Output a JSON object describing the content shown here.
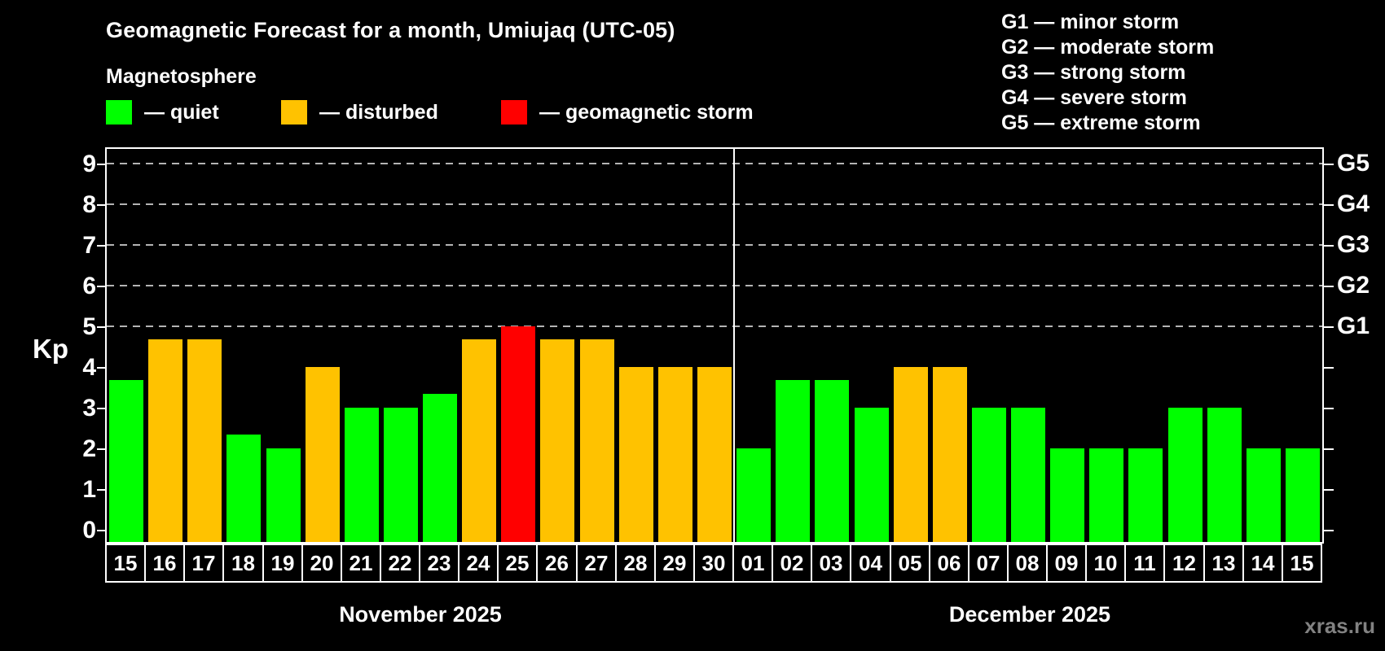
{
  "title": "Geomagnetic Forecast for a month, Umiujaq (UTC-05)",
  "subtitle": "Magnetosphere",
  "watermark": "xras.ru",
  "colors": {
    "background": "#000000",
    "quiet": "#00ff00",
    "disturbed": "#ffc200",
    "storm": "#ff0000",
    "frame": "#ffffff",
    "grid": "#b4b4b4",
    "watermark_text": "#828282"
  },
  "legend": [
    {
      "state": "quiet",
      "label": "— quiet"
    },
    {
      "state": "disturbed",
      "label": "— disturbed"
    },
    {
      "state": "storm",
      "label": "— geomagnetic storm"
    }
  ],
  "storm_scale_legend": [
    "G1 — minor storm",
    "G2 — moderate storm",
    "G3 — strong storm",
    "G4 — severe storm",
    "G5 — extreme storm"
  ],
  "chart_data": {
    "type": "bar",
    "ylabel": "Kp",
    "ylim": [
      0,
      9
    ],
    "yticks": [
      0,
      1,
      2,
      3,
      4,
      5,
      6,
      7,
      8,
      9
    ],
    "grid": {
      "horizontal_dashed_at_kp": [
        5,
        6,
        7,
        8,
        9
      ],
      "legend_position": "top"
    },
    "right_axis": [
      {
        "kp": 5,
        "label": "G1"
      },
      {
        "kp": 6,
        "label": "G2"
      },
      {
        "kp": 7,
        "label": "G3"
      },
      {
        "kp": 8,
        "label": "G4"
      },
      {
        "kp": 9,
        "label": "G5"
      }
    ],
    "groups": [
      {
        "label": "November 2025",
        "days": [
          "15",
          "16",
          "17",
          "18",
          "19",
          "20",
          "21",
          "22",
          "23",
          "24",
          "25",
          "26",
          "27",
          "28",
          "29",
          "30"
        ],
        "values": [
          3.67,
          4.67,
          4.67,
          2.33,
          2,
          4,
          3,
          3,
          3.33,
          4.67,
          5,
          4.67,
          4.67,
          4,
          4,
          4
        ],
        "states": [
          "quiet",
          "disturbed",
          "disturbed",
          "quiet",
          "quiet",
          "disturbed",
          "quiet",
          "quiet",
          "quiet",
          "disturbed",
          "storm",
          "disturbed",
          "disturbed",
          "disturbed",
          "disturbed",
          "disturbed"
        ]
      },
      {
        "label": "December 2025",
        "days": [
          "01",
          "02",
          "03",
          "04",
          "05",
          "06",
          "07",
          "08",
          "09",
          "10",
          "11",
          "12",
          "13",
          "14",
          "15"
        ],
        "values": [
          2,
          3.67,
          3.67,
          3,
          4,
          4,
          3,
          3,
          2,
          2,
          2,
          3,
          3,
          2,
          2
        ],
        "states": [
          "quiet",
          "quiet",
          "quiet",
          "quiet",
          "disturbed",
          "disturbed",
          "quiet",
          "quiet",
          "quiet",
          "quiet",
          "quiet",
          "quiet",
          "quiet",
          "quiet",
          "quiet"
        ]
      }
    ]
  }
}
